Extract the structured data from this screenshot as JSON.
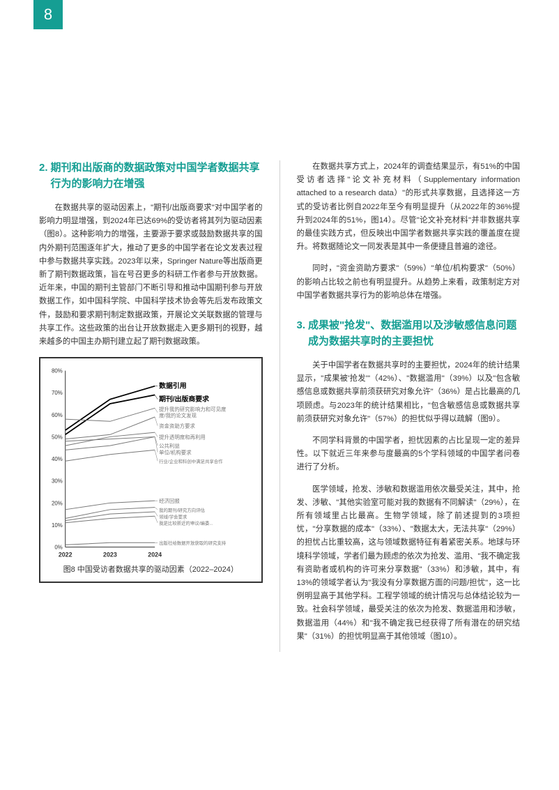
{
  "page_number": "8",
  "left_column": {
    "heading_num": "2.",
    "heading": "期刊和出版商的数据政策对中国学者数据共享行为的影响力在增强",
    "p1": "在数据共享的驱动因素上，\"期刊/出版商要求\"对中国学者的影响力明显增强，到2024年已达69%的受访者将其列为驱动因素（图8）。这种影响力的增强，主要源于要求或鼓励数据共享的国内外期刊范围逐年扩大，推动了更多的中国学者在论文发表过程中参与数据共享实践。2023年以来，Springer Nature等出版商更新了期刊数据政策，旨在号召更多的科研工作者参与开放数据。近年来，中国的期刊主管部门不断引导和推动中国期刊参与开放数据工作，如中国科学院、中国科学技术协会等先后发布政策文件，鼓励和要求期刊制定数据政策，开展论文关联数据的管理与共享工作。这些政策的出台让开放数据走入更多期刊的视野，越来越多的中国主办期刊建立起了期刊数据政策。",
    "figure8_caption": "图8 中国受访者数据共享的驱动因素（2022–2024）"
  },
  "right_column": {
    "p1": "在数据共享方式上，2024年的调查结果显示，有51%的中国受访者选择\"论文补充材料（Supplementary information attached to a research data）\"的形式共享数据，且选择这一方式的受访者比例自2022年至今有明显提升（从2022年的36%提升到2024年的51%，图14）。尽管\"论文补充材料\"并非数据共享的最佳实践方式，但反映出中国学者数据共享实践的覆盖度在提升。将数据随论文一同发表是其中一条便捷且普遍的途径。",
    "p2": "同时，\"资金资助方要求\"（59%）\"单位/机构要求\"（50%）的影响占比较之前也有明显提升。从趋势上来看，政策制定方对中国学者数据共享行为的影响总体在增强。",
    "heading_num": "3.",
    "heading": "成果被\"抢发\"、数据滥用以及涉敏感信息问题成为数据共享时的主要担忧",
    "p3": "关于中国学者在数据共享时的主要担忧，2024年的统计结果显示，\"成果被'抢发'\"（42%）、\"数据滥用\"（39%）以及\"包含敏感信息或数据共享前须获研究对象允许\"（36%）是占比最高的几项顾虑。与2023年的统计结果相比，\"包含敏感信息或数据共享前须获研究对象允许\"（57%）的担忧似乎得以疏解（图9）。",
    "p4": "不同学科背景的中国学者，担忧因素的占比呈现一定的差异性。以下就近三年来参与度最高的5个学科领域的中国学者问卷进行了分析。",
    "p5": "医学领域，抢发、涉敏和数据滥用依次最受关注，其中，抢发、涉敏、\"其他实验室可能对我的数据有不同解读\"（29%），在所有领域里占比最高。生物学领域，除了前述提到的3项担忧，\"分享数据的成本\"（33%）、\"数据太大，无法共享\"（29%）的担忧占比重较高，这与领域数据特征有着紧密关系。地球与环境科学领域，学者们最为顾虑的依次为抢发、滥用、\"我不确定我有资助者或机构的许可来分享数据\"（33%）和涉敏，其中，有13%的领域学者认为\"我没有分享数据方面的问题/担忧\"，这一比例明显高于其他学科。工程学领域的统计情况与总体结论较为一致。社会科学领域，最受关注的依次为抢发、数据滥用和涉敏，数据滥用（44%）和\"我不确定我已经获得了所有潜在的研究结果\"（31%）的担忧明显高于其他领域（图10）。"
  },
  "chart": {
    "type": "line",
    "x_labels": [
      "2022",
      "2023",
      "2024"
    ],
    "y_ticks": [
      "0%",
      "10%",
      "20%",
      "30%",
      "40%",
      "50%",
      "60%",
      "70%",
      "80%"
    ],
    "y_min": 0,
    "y_max": 80,
    "series": [
      {
        "name": "数据引用",
        "color": "#000000",
        "values": [
          53,
          67,
          73
        ],
        "label_y": 73,
        "emphasis": true
      },
      {
        "name": "期刊/出版商要求",
        "color": "#000000",
        "values": [
          51,
          65,
          69
        ],
        "label_y": 67,
        "emphasis": true
      },
      {
        "name": "提升我的研究影响力和可见度/我的论文发现",
        "color": "#777777",
        "values": [
          58,
          57,
          63
        ],
        "label_y": 61,
        "wrap": true
      },
      {
        "name": "资金资助方要求",
        "color": "#777777",
        "values": [
          49,
          51,
          59
        ],
        "label_y": 55
      },
      {
        "name": "提升透明度和再利用",
        "color": "#777777",
        "values": [
          46,
          50,
          52
        ],
        "label_y": 50
      },
      {
        "name": "公共利益",
        "color": "#777777",
        "values": [
          48,
          49,
          50
        ],
        "label_y": 46
      },
      {
        "name": "单位/机构要求",
        "color": "#777777",
        "values": [
          44,
          46,
          50
        ],
        "label_y": 43
      },
      {
        "name": "行业/企业和科创中满足共享合作",
        "color": "#777777",
        "values": [
          39,
          42,
          44
        ],
        "label_y": 39,
        "small": true
      },
      {
        "name": "经济回报",
        "color": "#777777",
        "values": [
          17,
          20,
          21
        ],
        "label_y": 21
      },
      {
        "name": "我的期刊/研究方向评估",
        "color": "#777777",
        "values": [
          13,
          17,
          18
        ],
        "label_y": 17,
        "small": true
      },
      {
        "name": "领域/学会要求",
        "color": "#777777",
        "values": [
          12,
          15,
          16
        ],
        "label_y": 14,
        "small": true
      },
      {
        "name": "我是比较新近的审议/编委...",
        "color": "#777777",
        "values": [
          11,
          13,
          14
        ],
        "label_y": 11,
        "small": true
      },
      {
        "name": "出版社给数据开放获取的研究支持",
        "color": "#777777",
        "values": [
          1,
          2,
          2
        ],
        "label_y": 2,
        "small": true
      }
    ],
    "background_color": "#ffffff",
    "plot_width_ratio": 0.52,
    "label_area_ratio": 0.48
  }
}
